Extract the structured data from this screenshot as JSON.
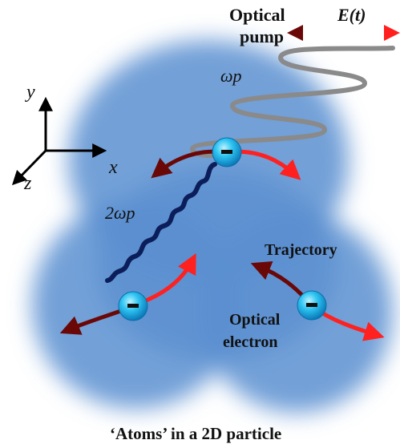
{
  "labels": {
    "pump_line1": "Optical",
    "pump_line2": "pump",
    "field": "E(t)",
    "freq": "ωp",
    "harmonic": "2ωp",
    "trajectory": "Trajectory",
    "electron_line1": "Optical",
    "electron_line2": "electron",
    "caption": "‘Atoms’ in a 2D particle",
    "axis_y": "y",
    "axis_x": "x",
    "axis_z": "z",
    "charge": "−"
  },
  "colors": {
    "cloud": "#5b8fd0",
    "electron": "#1ab2ea",
    "arrow_light": "#ff2020",
    "arrow_dark": "#6a0808",
    "pump_wave": "#8a8a8a",
    "harmonic_wave": "#0b1e5a"
  },
  "icons": [
    "electron-icon",
    "axis-triad-icon",
    "wave-icon",
    "double-arrow-icon"
  ]
}
